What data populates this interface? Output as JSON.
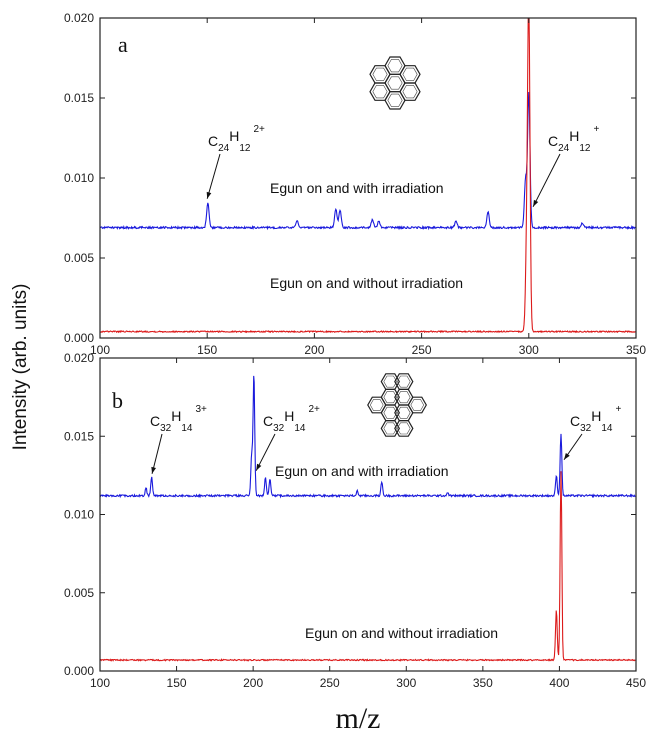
{
  "chart_data": {
    "xlabel": "m/z",
    "ylabel": "Intensity (arb. units)",
    "panels": [
      {
        "label": "a",
        "type": "line",
        "xlim": [
          100,
          350
        ],
        "ylim": [
          0.0,
          0.02
        ],
        "xticks": [
          100,
          150,
          200,
          250,
          300,
          350
        ],
        "yticks": [
          "0.000",
          "0.005",
          "0.010",
          "0.015",
          "0.020"
        ],
        "molecule": "coronene",
        "series": [
          {
            "name": "Egun on and with irradiation",
            "color": "#1a1adc",
            "baseline": 0.0069,
            "peaks": [
              {
                "x": 150.3,
                "y": 0.0085
              },
              {
                "x": 192,
                "y": 0.0073
              },
              {
                "x": 210,
                "y": 0.0081
              },
              {
                "x": 212,
                "y": 0.008
              },
              {
                "x": 227,
                "y": 0.0074
              },
              {
                "x": 230,
                "y": 0.0073
              },
              {
                "x": 266,
                "y": 0.0073
              },
              {
                "x": 281,
                "y": 0.0079
              },
              {
                "x": 298.5,
                "y": 0.0099
              },
              {
                "x": 300,
                "y": 0.0153
              },
              {
                "x": 325,
                "y": 0.0072
              }
            ]
          },
          {
            "name": "Egun on and without irradiation",
            "color": "#dc1a1a",
            "baseline": 0.0004,
            "peaks": [
              {
                "x": 299,
                "y": 0.005
              },
              {
                "x": 300,
                "y": 0.0205
              }
            ]
          }
        ],
        "annotations": [
          {
            "ion": {
              "base": "C",
              "n1": "24",
              "mid": "H",
              "n2": "12",
              "charge": "2+"
            },
            "x": 150,
            "y": 0.0087
          },
          {
            "ion": {
              "base": "C",
              "n1": "24",
              "mid": "H",
              "n2": "12",
              "charge": "+"
            },
            "x": 302,
            "y": 0.0082
          }
        ]
      },
      {
        "label": "b",
        "type": "line",
        "xlim": [
          100,
          450
        ],
        "ylim": [
          0.0,
          0.02
        ],
        "xticks": [
          100,
          150,
          200,
          250,
          300,
          350,
          400,
          450
        ],
        "yticks": [
          "0.000",
          "0.005",
          "0.010",
          "0.015",
          "0.020"
        ],
        "molecule": "ovalene",
        "series": [
          {
            "name": "Egun on and with irradiation",
            "color": "#1a1adc",
            "baseline": 0.0112,
            "peaks": [
              {
                "x": 130,
                "y": 0.0117
              },
              {
                "x": 133.7,
                "y": 0.0124
              },
              {
                "x": 199,
                "y": 0.0138
              },
              {
                "x": 200.5,
                "y": 0.0191
              },
              {
                "x": 208,
                "y": 0.0124
              },
              {
                "x": 211,
                "y": 0.0123
              },
              {
                "x": 268,
                "y": 0.0115
              },
              {
                "x": 284,
                "y": 0.0121
              },
              {
                "x": 327,
                "y": 0.0114
              },
              {
                "x": 398,
                "y": 0.0125
              },
              {
                "x": 401,
                "y": 0.0152
              }
            ]
          },
          {
            "name": "Egun on and without irradiation",
            "color": "#dc1a1a",
            "baseline": 0.0007,
            "peaks": [
              {
                "x": 398,
                "y": 0.0039
              },
              {
                "x": 401,
                "y": 0.0128
              }
            ]
          }
        ],
        "annotations": [
          {
            "ion": {
              "base": "C",
              "n1": "32",
              "mid": "H",
              "n2": "14",
              "charge": "3+"
            },
            "x": 134,
            "y": 0.0126
          },
          {
            "ion": {
              "base": "C",
              "n1": "32",
              "mid": "H",
              "n2": "14",
              "charge": "2+"
            },
            "x": 202,
            "y": 0.0128
          },
          {
            "ion": {
              "base": "C",
              "n1": "32",
              "mid": "H",
              "n2": "14",
              "charge": "+"
            },
            "x": 403,
            "y": 0.0135
          }
        ]
      }
    ]
  }
}
